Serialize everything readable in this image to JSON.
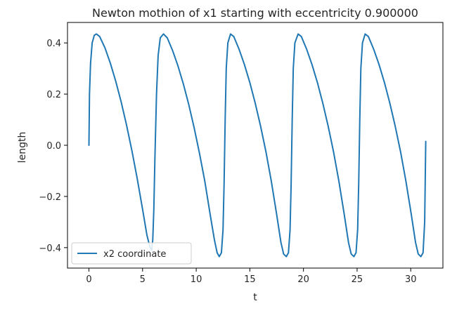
{
  "chart_data": {
    "type": "line",
    "title": "Newton mothion of x1 starting with eccentricity 0.900000",
    "xlabel": "t",
    "ylabel": "length",
    "xlim": [
      -2.0,
      33.0
    ],
    "ylim": [
      -0.48,
      0.48
    ],
    "xticks": [
      0,
      5,
      10,
      15,
      20,
      25,
      30
    ],
    "xtick_labels": [
      "0",
      "5",
      "10",
      "15",
      "20",
      "25",
      "30"
    ],
    "yticks": [
      0.4,
      0.2,
      0.0,
      -0.2,
      -0.4
    ],
    "ytick_labels": [
      "0.4",
      "0.2",
      "0.0",
      "−0.2",
      "−0.4"
    ],
    "grid": false,
    "legend": {
      "placement": "lower left",
      "entries": [
        "x2 coordinate"
      ]
    },
    "series": [
      {
        "name": "x2 coordinate",
        "color": "#1f77b4",
        "points": [
          [
            0.0,
            0.0
          ],
          [
            0.05,
            0.2
          ],
          [
            0.15,
            0.32
          ],
          [
            0.3,
            0.4
          ],
          [
            0.5,
            0.43
          ],
          [
            0.7,
            0.435
          ],
          [
            1.0,
            0.425
          ],
          [
            1.5,
            0.38
          ],
          [
            2.0,
            0.32
          ],
          [
            2.5,
            0.25
          ],
          [
            3.0,
            0.17
          ],
          [
            3.5,
            0.08
          ],
          [
            4.0,
            -0.02
          ],
          [
            4.5,
            -0.13
          ],
          [
            5.0,
            -0.25
          ],
          [
            5.4,
            -0.35
          ],
          [
            5.7,
            -0.4
          ],
          [
            5.85,
            -0.41
          ],
          [
            5.95,
            -0.37
          ],
          [
            6.05,
            -0.25
          ],
          [
            6.15,
            -0.05
          ],
          [
            6.3,
            0.2
          ],
          [
            6.45,
            0.35
          ],
          [
            6.65,
            0.42
          ],
          [
            6.95,
            0.435
          ],
          [
            7.3,
            0.42
          ],
          [
            7.8,
            0.37
          ],
          [
            8.3,
            0.31
          ],
          [
            8.8,
            0.24
          ],
          [
            9.3,
            0.16
          ],
          [
            9.8,
            0.07
          ],
          [
            10.3,
            -0.03
          ],
          [
            10.8,
            -0.14
          ],
          [
            11.3,
            -0.27
          ],
          [
            11.7,
            -0.37
          ],
          [
            11.95,
            -0.42
          ],
          [
            12.15,
            -0.435
          ],
          [
            12.35,
            -0.42
          ],
          [
            12.5,
            -0.33
          ],
          [
            12.6,
            -0.15
          ],
          [
            12.7,
            0.1
          ],
          [
            12.8,
            0.3
          ],
          [
            12.95,
            0.4
          ],
          [
            13.2,
            0.435
          ],
          [
            13.5,
            0.425
          ],
          [
            14.0,
            0.375
          ],
          [
            14.5,
            0.315
          ],
          [
            15.0,
            0.245
          ],
          [
            15.5,
            0.165
          ],
          [
            16.0,
            0.075
          ],
          [
            16.5,
            -0.025
          ],
          [
            17.0,
            -0.14
          ],
          [
            17.5,
            -0.27
          ],
          [
            17.9,
            -0.38
          ],
          [
            18.15,
            -0.425
          ],
          [
            18.4,
            -0.435
          ],
          [
            18.6,
            -0.42
          ],
          [
            18.75,
            -0.33
          ],
          [
            18.85,
            -0.15
          ],
          [
            18.95,
            0.1
          ],
          [
            19.05,
            0.3
          ],
          [
            19.2,
            0.4
          ],
          [
            19.5,
            0.435
          ],
          [
            19.8,
            0.425
          ],
          [
            20.3,
            0.375
          ],
          [
            20.8,
            0.315
          ],
          [
            21.3,
            0.245
          ],
          [
            21.8,
            0.165
          ],
          [
            22.3,
            0.075
          ],
          [
            22.8,
            -0.025
          ],
          [
            23.3,
            -0.14
          ],
          [
            23.8,
            -0.27
          ],
          [
            24.2,
            -0.38
          ],
          [
            24.45,
            -0.425
          ],
          [
            24.7,
            -0.435
          ],
          [
            24.9,
            -0.42
          ],
          [
            25.05,
            -0.33
          ],
          [
            25.15,
            -0.15
          ],
          [
            25.25,
            0.1
          ],
          [
            25.35,
            0.3
          ],
          [
            25.5,
            0.4
          ],
          [
            25.75,
            0.435
          ],
          [
            26.05,
            0.425
          ],
          [
            26.55,
            0.375
          ],
          [
            27.05,
            0.315
          ],
          [
            27.55,
            0.245
          ],
          [
            28.05,
            0.165
          ],
          [
            28.55,
            0.075
          ],
          [
            29.05,
            -0.025
          ],
          [
            29.55,
            -0.14
          ],
          [
            30.05,
            -0.27
          ],
          [
            30.45,
            -0.38
          ],
          [
            30.7,
            -0.425
          ],
          [
            30.95,
            -0.435
          ],
          [
            31.15,
            -0.42
          ],
          [
            31.3,
            -0.3
          ],
          [
            31.4,
            0.015
          ]
        ]
      }
    ]
  }
}
